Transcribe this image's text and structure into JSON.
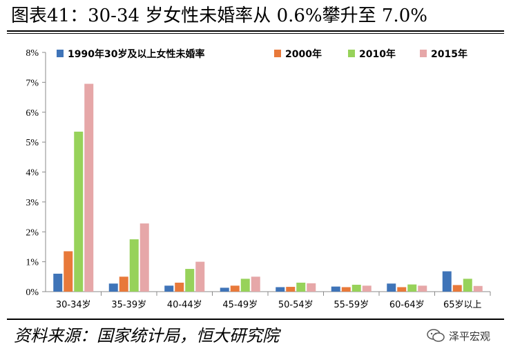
{
  "title": "图表41：30-34 岁女性未婚率从 0.6%攀升至 7.0%",
  "source": "资料来源：国家统计局，恒大研究院",
  "watermark": {
    "text": "泽平宏观",
    "icon": "wechat-icon"
  },
  "colors": [
    "#3f74b8",
    "#e8793a",
    "#97d25a",
    "#e6a7a8"
  ],
  "chart_data": {
    "type": "bar",
    "categories": [
      "30-34岁",
      "35-39岁",
      "40-44岁",
      "45-49岁",
      "50-54岁",
      "55-59岁",
      "60-64岁",
      "65岁以上"
    ],
    "series": [
      {
        "name": "1990年30岁及以上女性未婚率",
        "values": [
          0.6,
          0.27,
          0.2,
          0.13,
          0.15,
          0.17,
          0.27,
          0.68
        ]
      },
      {
        "name": "2000年",
        "values": [
          1.35,
          0.5,
          0.3,
          0.2,
          0.16,
          0.15,
          0.15,
          0.22
        ]
      },
      {
        "name": "2010年",
        "values": [
          5.35,
          1.75,
          0.76,
          0.43,
          0.3,
          0.23,
          0.24,
          0.43
        ]
      },
      {
        "name": "2015年",
        "values": [
          6.95,
          2.28,
          1.0,
          0.5,
          0.28,
          0.2,
          0.2,
          0.19
        ]
      }
    ],
    "ylim": [
      0,
      8
    ],
    "yticks": [
      "0%",
      "1%",
      "2%",
      "3%",
      "4%",
      "5%",
      "6%",
      "7%",
      "8%"
    ],
    "legend_position": "top",
    "grid": false
  }
}
